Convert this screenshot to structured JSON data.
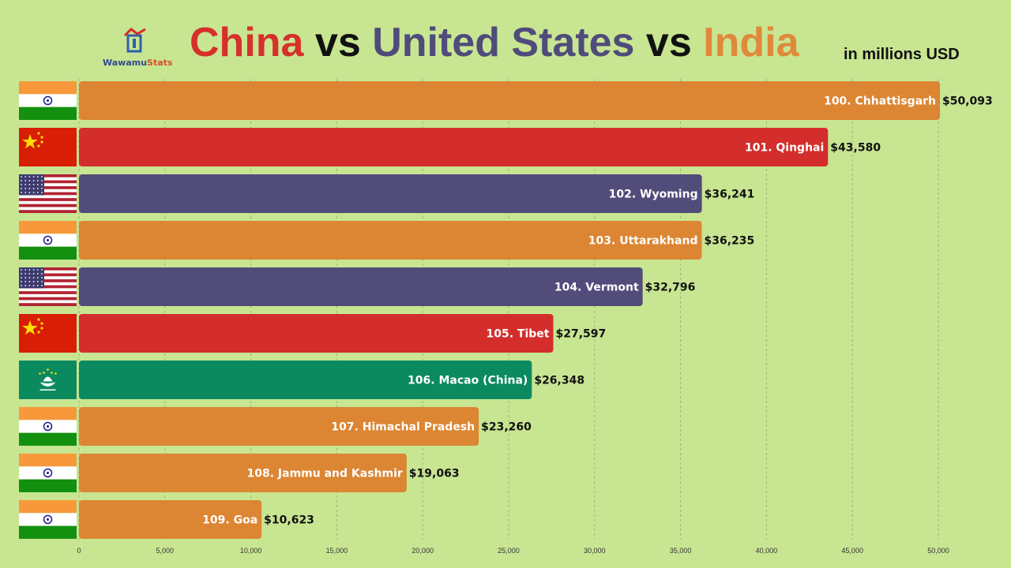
{
  "logo": {
    "text_a": "Wawamu",
    "text_b": "Stats"
  },
  "title": {
    "part1": "China",
    "vs1": " vs ",
    "part2": "United States",
    "vs2": " vs ",
    "part3": "India"
  },
  "subtitle": "in millions USD",
  "colors": {
    "India": "#dc8532",
    "China": "#d32e2b",
    "United States": "#514c7a",
    "Macao": "#0b8a5f",
    "background": "#c8e592"
  },
  "chart_data": {
    "type": "bar",
    "orientation": "horizontal",
    "xlim": [
      0,
      50000
    ],
    "ticks": [
      0,
      5000,
      10000,
      15000,
      20000,
      25000,
      30000,
      35000,
      40000,
      45000,
      50000
    ],
    "tick_labels": [
      "0",
      "5,000",
      "10,000",
      "15,000",
      "20,000",
      "25,000",
      "30,000",
      "35,000",
      "40,000",
      "45,000",
      "50,000"
    ],
    "grid": true,
    "bars": [
      {
        "label": "100. Chhattisgarh",
        "value": 50093,
        "value_label": "$50,093",
        "country": "India"
      },
      {
        "label": "101. Qinghai",
        "value": 43580,
        "value_label": "$43,580",
        "country": "China"
      },
      {
        "label": "102. Wyoming",
        "value": 36241,
        "value_label": "$36,241",
        "country": "United States"
      },
      {
        "label": "103. Uttarakhand",
        "value": 36235,
        "value_label": "$36,235",
        "country": "India"
      },
      {
        "label": "104. Vermont",
        "value": 32796,
        "value_label": "$32,796",
        "country": "United States"
      },
      {
        "label": "105. Tibet",
        "value": 27597,
        "value_label": "$27,597",
        "country": "China"
      },
      {
        "label": "106. Macao (China)",
        "value": 26348,
        "value_label": "$26,348",
        "country": "Macao"
      },
      {
        "label": "107. Himachal Pradesh",
        "value": 23260,
        "value_label": "$23,260",
        "country": "India"
      },
      {
        "label": "108. Jammu and Kashmir",
        "value": 19063,
        "value_label": "$19,063",
        "country": "India"
      },
      {
        "label": "109. Goa",
        "value": 10623,
        "value_label": "$10,623",
        "country": "India"
      }
    ]
  }
}
